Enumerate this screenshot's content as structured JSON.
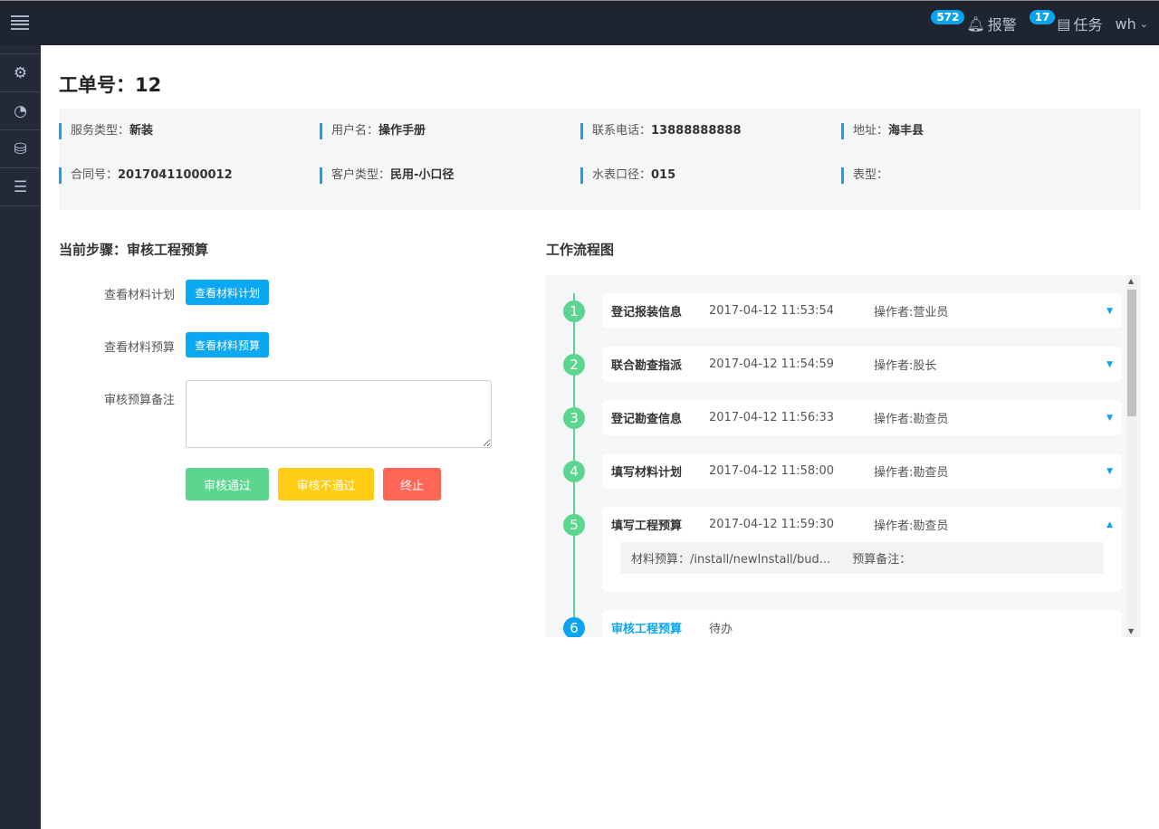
{
  "topbar": {
    "alarm_count": "572",
    "alarm_label": "报警",
    "task_count": "17",
    "task_label": "任务",
    "user": "wh"
  },
  "sidebar": [
    "gear-icon",
    "dashboard-icon",
    "drive-icon",
    "server-icon"
  ],
  "title": "工单号：12",
  "info": [
    {
      "label": "服务类型：",
      "value": "新装"
    },
    {
      "label": "用户名：",
      "value": "操作手册"
    },
    {
      "label": "联系电话：",
      "value": "13888888888"
    },
    {
      "label": "地址：",
      "value": "海丰县"
    },
    {
      "label": "合同号：",
      "value": "20170411000012"
    },
    {
      "label": "客户类型：",
      "value": "民用-小口径"
    },
    {
      "label": "水表口径：",
      "value": "015"
    },
    {
      "label": "表型：",
      "value": ""
    }
  ],
  "step": {
    "title": "当前步骤：审核工程预算",
    "plan_label": "查看材料计划",
    "plan_btn": "查看材料计划",
    "budget_label": "查看材料预算",
    "budget_btn": "查看材料预算",
    "remark_label": "审核预算备注",
    "remark_value": "",
    "approve": "审核通过",
    "reject": "审核不通过",
    "stop": "终止"
  },
  "flow": {
    "title": "工作流程图",
    "items": [
      {
        "n": "1",
        "name": "登记报装信息",
        "time": "2017-04-12 11:53:54",
        "op": "操作者:营业员"
      },
      {
        "n": "2",
        "name": "联合勘查指派",
        "time": "2017-04-12 11:54:59",
        "op": "操作者:股长"
      },
      {
        "n": "3",
        "name": "登记勘查信息",
        "time": "2017-04-12 11:56:33",
        "op": "操作者:勘查员"
      },
      {
        "n": "4",
        "name": "填写材料计划",
        "time": "2017-04-12 11:58:00",
        "op": "操作者:勘查员"
      },
      {
        "n": "5",
        "name": "填写工程预算",
        "time": "2017-04-12 11:59:30",
        "op": "操作者:勘查员",
        "detail1": "材料预算：/install/newInstall/bud...",
        "detail2": "预算备注："
      },
      {
        "n": "6",
        "name": "审核工程预算",
        "time": "待办",
        "op": ""
      }
    ]
  },
  "colors": {
    "accent": "#0aa7f2",
    "done": "#5cd68f",
    "approve": "#5cd68f",
    "reject": "#ffcc14",
    "stop": "#ff6655"
  }
}
